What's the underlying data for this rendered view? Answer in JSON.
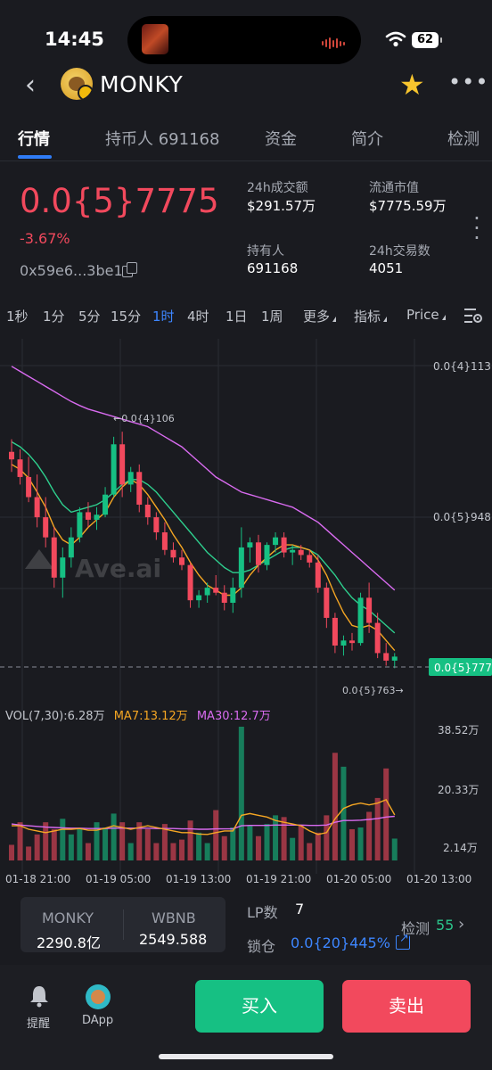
{
  "status_bar": {
    "time": "14:45",
    "battery": "62"
  },
  "header": {
    "token_name": "MONKY"
  },
  "tabs": [
    {
      "label": "行情",
      "active": true
    },
    {
      "label": "持币人 691168"
    },
    {
      "label": "资金"
    },
    {
      "label": "简介"
    },
    {
      "label": "检测"
    }
  ],
  "price_info": {
    "price": "0.0{5}7775",
    "change": "-3.67%",
    "address": "0x59e6...3be1"
  },
  "stats": {
    "volume_24h_label": "24h成交额",
    "volume_24h": "$291.57万",
    "market_cap_label": "流通市值",
    "market_cap": "$7775.59万",
    "holders_label": "持有人",
    "holders": "691168",
    "tx_24h_label": "24h交易数",
    "tx_24h": "4051"
  },
  "intervals": [
    "1秒",
    "1分",
    "5分",
    "15分",
    "1时",
    "4时",
    "1日",
    "1周",
    "更多",
    "指标",
    "Price"
  ],
  "active_interval": "1时",
  "colors": {
    "up": "#16c083",
    "down": "#f2495d",
    "accent": "#3d86ff",
    "ma7": "#f5a623",
    "ma30": "#d96bf0",
    "ma_green": "#2ecf8e"
  },
  "chart_data": {
    "type": "candlestick",
    "watermark": "Ave.ai",
    "price_axis_labels": [
      "0.0{4}113",
      "0.0{5}948"
    ],
    "current_price_label": "0.0{5}777",
    "high_annotation": "←0.0{4}106",
    "low_annotation": "0.0{5}763→",
    "volume_legend": {
      "vol": "VOL(7,30):6.28万",
      "ma7": "MA7:13.12万",
      "ma30": "MA30:12.7万"
    },
    "volume_axis_labels": [
      "38.52万",
      "20.33万",
      "2.14万"
    ],
    "x_tick_labels": [
      "01-18 21:00",
      "01-19 05:00",
      "01-19 13:00",
      "01-19 21:00",
      "01-20 05:00",
      "01-20 13:00"
    ],
    "candles": [
      {
        "o": 99.0,
        "h": 101.5,
        "l": 95.0,
        "c": 97.5
      },
      {
        "o": 97.5,
        "h": 99.5,
        "l": 92.5,
        "c": 94.0
      },
      {
        "o": 94.0,
        "h": 98.0,
        "l": 89.0,
        "c": 90.0
      },
      {
        "o": 90.0,
        "h": 94.5,
        "l": 84.0,
        "c": 86.0
      },
      {
        "o": 86.0,
        "h": 90.0,
        "l": 80.0,
        "c": 82.0
      },
      {
        "o": 82.0,
        "h": 84.0,
        "l": 72.0,
        "c": 74.0
      },
      {
        "o": 74.0,
        "h": 80.0,
        "l": 70.0,
        "c": 78.0
      },
      {
        "o": 78.0,
        "h": 84.0,
        "l": 76.0,
        "c": 82.0
      },
      {
        "o": 82.0,
        "h": 88.0,
        "l": 81.0,
        "c": 87.0
      },
      {
        "o": 87.0,
        "h": 89.0,
        "l": 84.0,
        "c": 85.5
      },
      {
        "o": 85.5,
        "h": 88.0,
        "l": 83.5,
        "c": 86.5
      },
      {
        "o": 86.5,
        "h": 92.0,
        "l": 86.0,
        "c": 90.5
      },
      {
        "o": 90.5,
        "h": 102.0,
        "l": 90.0,
        "c": 100.5
      },
      {
        "o": 100.5,
        "h": 103.0,
        "l": 90.0,
        "c": 92.5
      },
      {
        "o": 92.5,
        "h": 96.0,
        "l": 91.0,
        "c": 95.0
      },
      {
        "o": 95.0,
        "h": 96.5,
        "l": 87.0,
        "c": 88.5
      },
      {
        "o": 88.5,
        "h": 90.0,
        "l": 84.5,
        "c": 86.0
      },
      {
        "o": 86.0,
        "h": 87.0,
        "l": 81.5,
        "c": 83.0
      },
      {
        "o": 83.0,
        "h": 85.0,
        "l": 78.5,
        "c": 79.5
      },
      {
        "o": 79.5,
        "h": 81.0,
        "l": 77.0,
        "c": 78.0
      },
      {
        "o": 78.0,
        "h": 79.5,
        "l": 75.5,
        "c": 76.5
      },
      {
        "o": 76.5,
        "h": 77.0,
        "l": 68.0,
        "c": 69.5
      },
      {
        "o": 69.5,
        "h": 71.5,
        "l": 68.0,
        "c": 70.5
      },
      {
        "o": 70.5,
        "h": 73.0,
        "l": 69.0,
        "c": 72.0
      },
      {
        "o": 72.0,
        "h": 74.5,
        "l": 70.5,
        "c": 71.0
      },
      {
        "o": 71.0,
        "h": 72.5,
        "l": 67.5,
        "c": 69.0
      },
      {
        "o": 69.0,
        "h": 74.0,
        "l": 67.0,
        "c": 72.0
      },
      {
        "o": 72.0,
        "h": 84.0,
        "l": 70.0,
        "c": 80.0
      },
      {
        "o": 80.0,
        "h": 82.0,
        "l": 77.0,
        "c": 81.0
      },
      {
        "o": 81.0,
        "h": 82.5,
        "l": 75.0,
        "c": 76.5
      },
      {
        "o": 76.5,
        "h": 81.0,
        "l": 75.5,
        "c": 80.5
      },
      {
        "o": 80.5,
        "h": 83.0,
        "l": 79.0,
        "c": 82.0
      },
      {
        "o": 82.0,
        "h": 83.0,
        "l": 78.0,
        "c": 79.0
      },
      {
        "o": 79.0,
        "h": 80.5,
        "l": 76.5,
        "c": 79.5
      },
      {
        "o": 79.5,
        "h": 80.5,
        "l": 77.5,
        "c": 78.5
      },
      {
        "o": 78.5,
        "h": 79.5,
        "l": 76.0,
        "c": 77.0
      },
      {
        "o": 77.0,
        "h": 78.5,
        "l": 71.0,
        "c": 72.0
      },
      {
        "o": 72.0,
        "h": 73.0,
        "l": 64.0,
        "c": 66.0
      },
      {
        "o": 66.0,
        "h": 67.0,
        "l": 59.0,
        "c": 60.5
      },
      {
        "o": 60.5,
        "h": 62.5,
        "l": 58.5,
        "c": 61.5
      },
      {
        "o": 61.5,
        "h": 63.0,
        "l": 59.5,
        "c": 61.0
      },
      {
        "o": 61.0,
        "h": 71.0,
        "l": 60.5,
        "c": 70.0
      },
      {
        "o": 70.0,
        "h": 73.0,
        "l": 63.0,
        "c": 65.0
      },
      {
        "o": 65.0,
        "h": 67.0,
        "l": 58.0,
        "c": 59.0
      },
      {
        "o": 59.0,
        "h": 61.0,
        "l": 56.5,
        "c": 57.5
      },
      {
        "o": 57.5,
        "h": 59.0,
        "l": 56.0,
        "c": 58.3
      }
    ],
    "ma_short": [
      96.5,
      95.5,
      93.8,
      91.0,
      88.0,
      84.0,
      81.5,
      80.5,
      82.0,
      84.0,
      85.5,
      87.0,
      90.0,
      92.0,
      93.5,
      92.5,
      90.5,
      88.0,
      85.5,
      82.5,
      80.0,
      77.0,
      74.5,
      72.5,
      71.5,
      70.5,
      70.5,
      72.0,
      74.5,
      76.5,
      78.0,
      79.5,
      80.5,
      80.5,
      80.0,
      79.5,
      77.5,
      74.5,
      70.5,
      67.0,
      64.5,
      64.0,
      64.5,
      63.5,
      61.5,
      59.5
    ],
    "ma_mid": [
      101.0,
      100.0,
      98.5,
      96.5,
      94.0,
      91.0,
      88.5,
      87.0,
      87.5,
      88.0,
      88.5,
      89.5,
      91.0,
      92.5,
      93.5,
      93.5,
      92.5,
      91.0,
      89.0,
      87.0,
      85.0,
      83.0,
      81.0,
      79.0,
      77.5,
      76.0,
      75.0,
      75.0,
      75.5,
      76.5,
      77.5,
      78.5,
      79.5,
      80.0,
      80.0,
      79.5,
      78.5,
      76.5,
      74.5,
      72.0,
      70.0,
      68.5,
      67.5,
      66.0,
      64.5,
      63.0
    ],
    "ma_long": [
      116.0,
      115.0,
      114.0,
      113.0,
      112.0,
      111.0,
      110.0,
      109.0,
      108.2,
      107.5,
      107.0,
      106.5,
      106.0,
      105.5,
      105.0,
      104.5,
      104.0,
      103.0,
      102.0,
      101.0,
      100.0,
      98.5,
      97.0,
      95.5,
      94.0,
      93.0,
      92.0,
      91.0,
      90.5,
      90.0,
      89.5,
      89.0,
      88.5,
      88.0,
      87.0,
      86.0,
      85.0,
      83.5,
      82.0,
      80.5,
      79.0,
      77.5,
      76.0,
      74.5,
      73.0,
      71.5
    ],
    "volumes": [
      4.5,
      11.0,
      4.0,
      7.5,
      11.0,
      9.0,
      12.0,
      7.5,
      9.0,
      5.0,
      11.0,
      9.5,
      13.5,
      11.0,
      5.0,
      11.0,
      9.0,
      5.0,
      10.5,
      5.0,
      6.0,
      11.5,
      8.0,
      5.0,
      14.5,
      7.0,
      9.5,
      38.52,
      10.0,
      7.0,
      10.5,
      13.0,
      12.5,
      6.5,
      10.0,
      5.0,
      8.0,
      13.0,
      31.0,
      27.0,
      9.0,
      9.5,
      14.0,
      18.0,
      26.5,
      6.3
    ],
    "vol_ma7": [
      10.0,
      10.0,
      9.0,
      8.5,
      8.0,
      8.5,
      9.0,
      9.0,
      9.2,
      8.7,
      8.7,
      9.3,
      10.0,
      9.5,
      9.0,
      9.5,
      10.0,
      9.5,
      9.0,
      8.5,
      8.0,
      8.0,
      7.6,
      7.5,
      8.0,
      8.5,
      8.5,
      13.0,
      13.5,
      13.0,
      12.5,
      11.5,
      11.0,
      10.5,
      10.0,
      8.5,
      7.5,
      8.0,
      12.0,
      15.0,
      16.0,
      16.5,
      16.0,
      16.5,
      17.5,
      13.12
    ],
    "vol_ma30": [
      10.5,
      10.2,
      10.0,
      9.8,
      9.6,
      9.5,
      9.4,
      9.3,
      9.3,
      9.2,
      9.2,
      9.2,
      9.3,
      9.3,
      9.3,
      9.3,
      9.3,
      9.2,
      9.2,
      9.2,
      9.1,
      9.1,
      9.0,
      9.0,
      9.1,
      9.1,
      9.1,
      10.0,
      10.1,
      10.1,
      10.1,
      10.2,
      10.2,
      10.2,
      10.2,
      10.1,
      10.1,
      10.2,
      11.0,
      11.5,
      11.5,
      11.6,
      11.8,
      12.1,
      12.5,
      12.7
    ]
  },
  "liquidity": {
    "token_a": "MONKY",
    "amount_a": "2290.8亿",
    "token_b": "WBNB",
    "amount_b": "2549.588",
    "lp_label": "LP数",
    "lp_value": "7",
    "lock_label": "锁仓",
    "lock_value": "0.0{20}445%",
    "check_label": "检测",
    "check_score": "55"
  },
  "bottom_nav": {
    "remind_label": "提醒",
    "dapp_label": "DApp",
    "buy_label": "买入",
    "sell_label": "卖出"
  }
}
